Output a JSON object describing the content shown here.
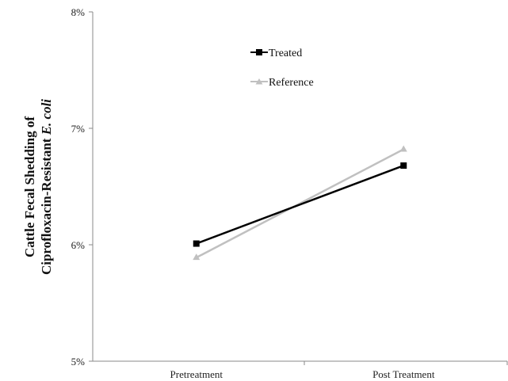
{
  "chart_data": {
    "type": "line",
    "title": "",
    "xlabel": "",
    "ylabel": {
      "line1": "Cattle Fecal Shedding of",
      "line2_prefix": "Ciprofloxacin-Resistant ",
      "line2_italic": "E. coli"
    },
    "categories": [
      "Pretreatment",
      "Post Treatment"
    ],
    "ylim": [
      5,
      8
    ],
    "yticks": [
      5,
      6,
      7,
      8
    ],
    "ytick_labels": [
      "5%",
      "6%",
      "7%",
      "8%"
    ],
    "series": [
      {
        "name": "Treated",
        "values": [
          6.01,
          6.68
        ],
        "color": "#000000",
        "marker": "square"
      },
      {
        "name": "Reference",
        "values": [
          5.89,
          6.82
        ],
        "color": "#c0c0c0",
        "marker": "triangle"
      }
    ],
    "legend": "top-left inside plot",
    "grid": false
  }
}
